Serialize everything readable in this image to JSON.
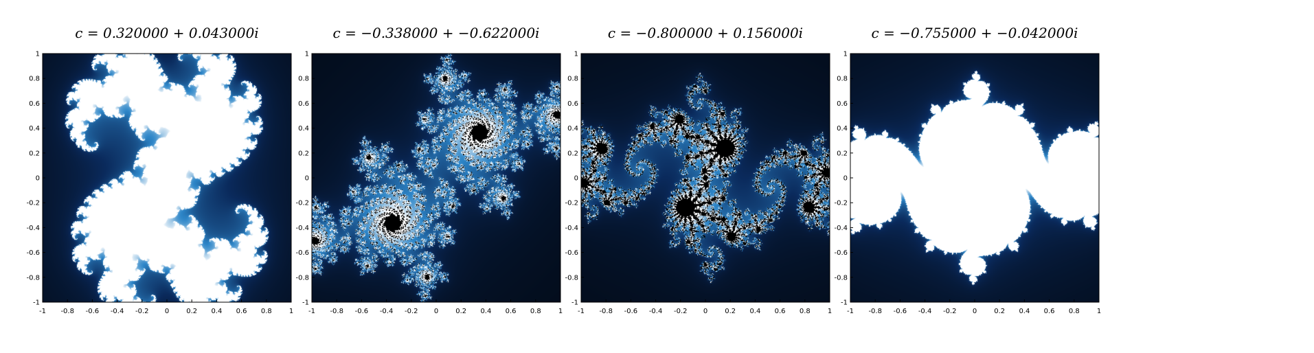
{
  "figure": {
    "panels": [
      {
        "title": "c = 0.320000 + 0.043000i",
        "c_re": 0.32,
        "c_im": 0.043,
        "style": "fill"
      },
      {
        "title": "c = −0.338000 + −0.622000i",
        "c_re": -0.338,
        "c_im": -0.622,
        "style": "glow"
      },
      {
        "title": "c = −0.800000 + 0.156000i",
        "c_re": -0.8,
        "c_im": 0.156,
        "style": "glow"
      },
      {
        "title": "c = −0.755000 + −0.042000i",
        "c_re": -0.755,
        "c_im": -0.042,
        "style": "fill"
      }
    ],
    "x_ticks": [
      "-1",
      "-0.8",
      "-0.6",
      "-0.4",
      "-0.2",
      "0",
      "0.2",
      "0.4",
      "0.6",
      "0.8",
      "1"
    ],
    "y_ticks": [
      "1",
      "0.8",
      "0.6",
      "0.4",
      "0.2",
      "0",
      "-0.2",
      "-0.4",
      "-0.6",
      "-0.8",
      "-1"
    ],
    "xlim": [
      -1,
      1
    ],
    "ylim": [
      -1,
      1
    ],
    "colormap": [
      "#000000",
      "#0a2a5c",
      "#2e86c8",
      "#ffffff"
    ]
  }
}
